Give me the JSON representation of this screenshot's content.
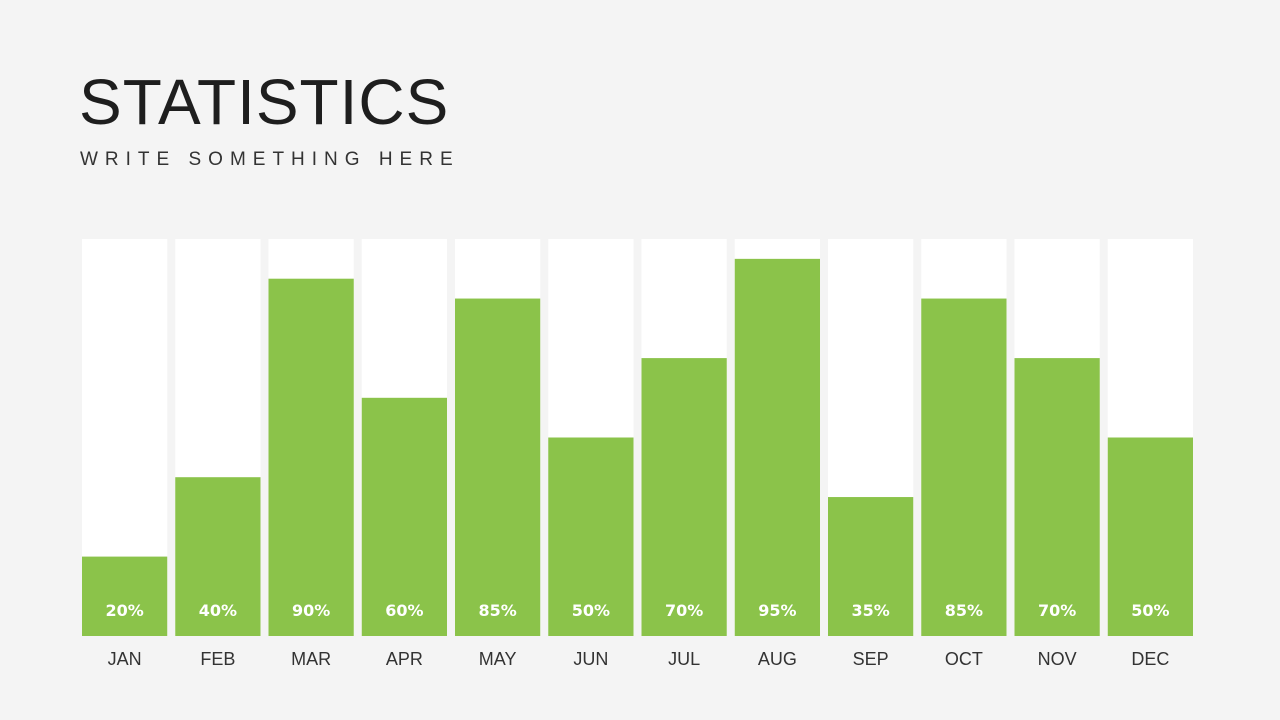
{
  "slide": {
    "title": "STATISTICS",
    "subtitle": "WRITE SOMETHING HERE"
  },
  "colors": {
    "background": "#f4f4f4",
    "track": "#ffffff",
    "bar": "#8bc34a",
    "data_label": "#ffffff",
    "tick_label": "#333333"
  },
  "chart_data": {
    "type": "bar",
    "title": "",
    "xlabel": "",
    "ylabel": "",
    "ylim": [
      0,
      100
    ],
    "grid": false,
    "legend": "none",
    "categories": [
      "JAN",
      "FEB",
      "MAR",
      "APR",
      "MAY",
      "JUN",
      "JUL",
      "AUG",
      "SEP",
      "OCT",
      "NOV",
      "DEC"
    ],
    "values": [
      20,
      40,
      90,
      60,
      85,
      50,
      70,
      95,
      35,
      85,
      70,
      50
    ],
    "data_labels": [
      "20%",
      "40%",
      "90%",
      "60%",
      "85%",
      "50%",
      "70%",
      "95%",
      "35%",
      "85%",
      "70%",
      "50%"
    ]
  }
}
